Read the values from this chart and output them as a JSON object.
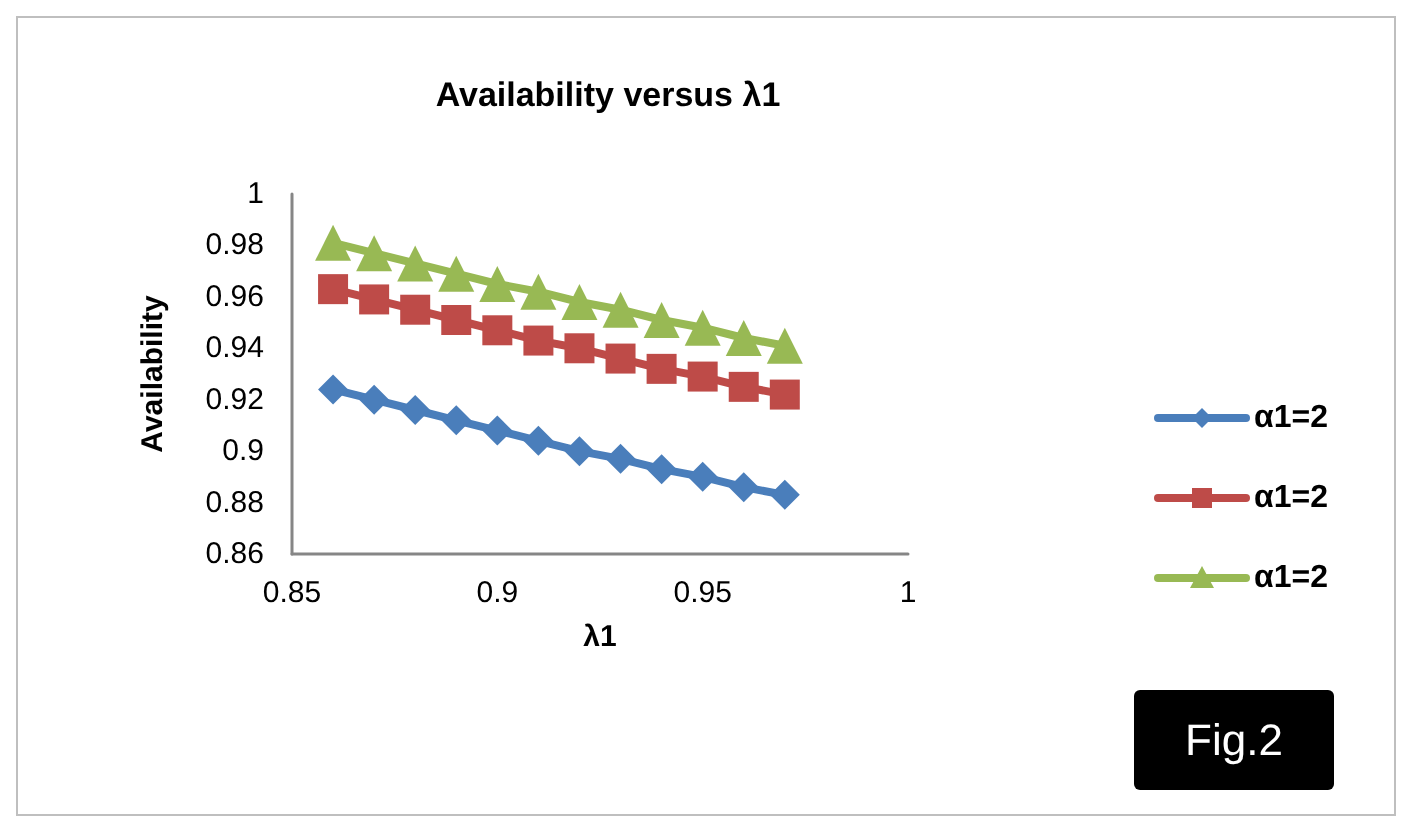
{
  "chart_data": {
    "type": "line",
    "title": "Availability versus λ1",
    "xlabel": "λ1",
    "ylabel": "Availability",
    "x": [
      0.86,
      0.87,
      0.88,
      0.89,
      0.9,
      0.91,
      0.92,
      0.93,
      0.94,
      0.95,
      0.96,
      0.97
    ],
    "series": [
      {
        "name": "α1=2",
        "color": "#4a7ebb",
        "marker": "diamond",
        "values": [
          0.924,
          0.92,
          0.916,
          0.912,
          0.908,
          0.904,
          0.9,
          0.897,
          0.893,
          0.89,
          0.886,
          0.883
        ]
      },
      {
        "name": "α1=2",
        "color": "#be4b48",
        "marker": "square",
        "values": [
          0.963,
          0.959,
          0.955,
          0.951,
          0.947,
          0.943,
          0.94,
          0.936,
          0.932,
          0.929,
          0.925,
          0.922
        ]
      },
      {
        "name": "α1=2",
        "color": "#98b954",
        "marker": "triangle",
        "values": [
          0.981,
          0.977,
          0.973,
          0.969,
          0.965,
          0.962,
          0.958,
          0.955,
          0.951,
          0.948,
          0.944,
          0.941
        ]
      }
    ],
    "xlim": [
      0.85,
      1
    ],
    "xticks": [
      0.85,
      0.9,
      0.95,
      1
    ],
    "ylim": [
      0.86,
      1
    ],
    "yticks": [
      0.86,
      0.88,
      0.9,
      0.92,
      0.94,
      0.96,
      0.98,
      1
    ],
    "grid": false,
    "legend": "right",
    "line_style": "solid",
    "annotations": [
      "Fig.2"
    ]
  }
}
